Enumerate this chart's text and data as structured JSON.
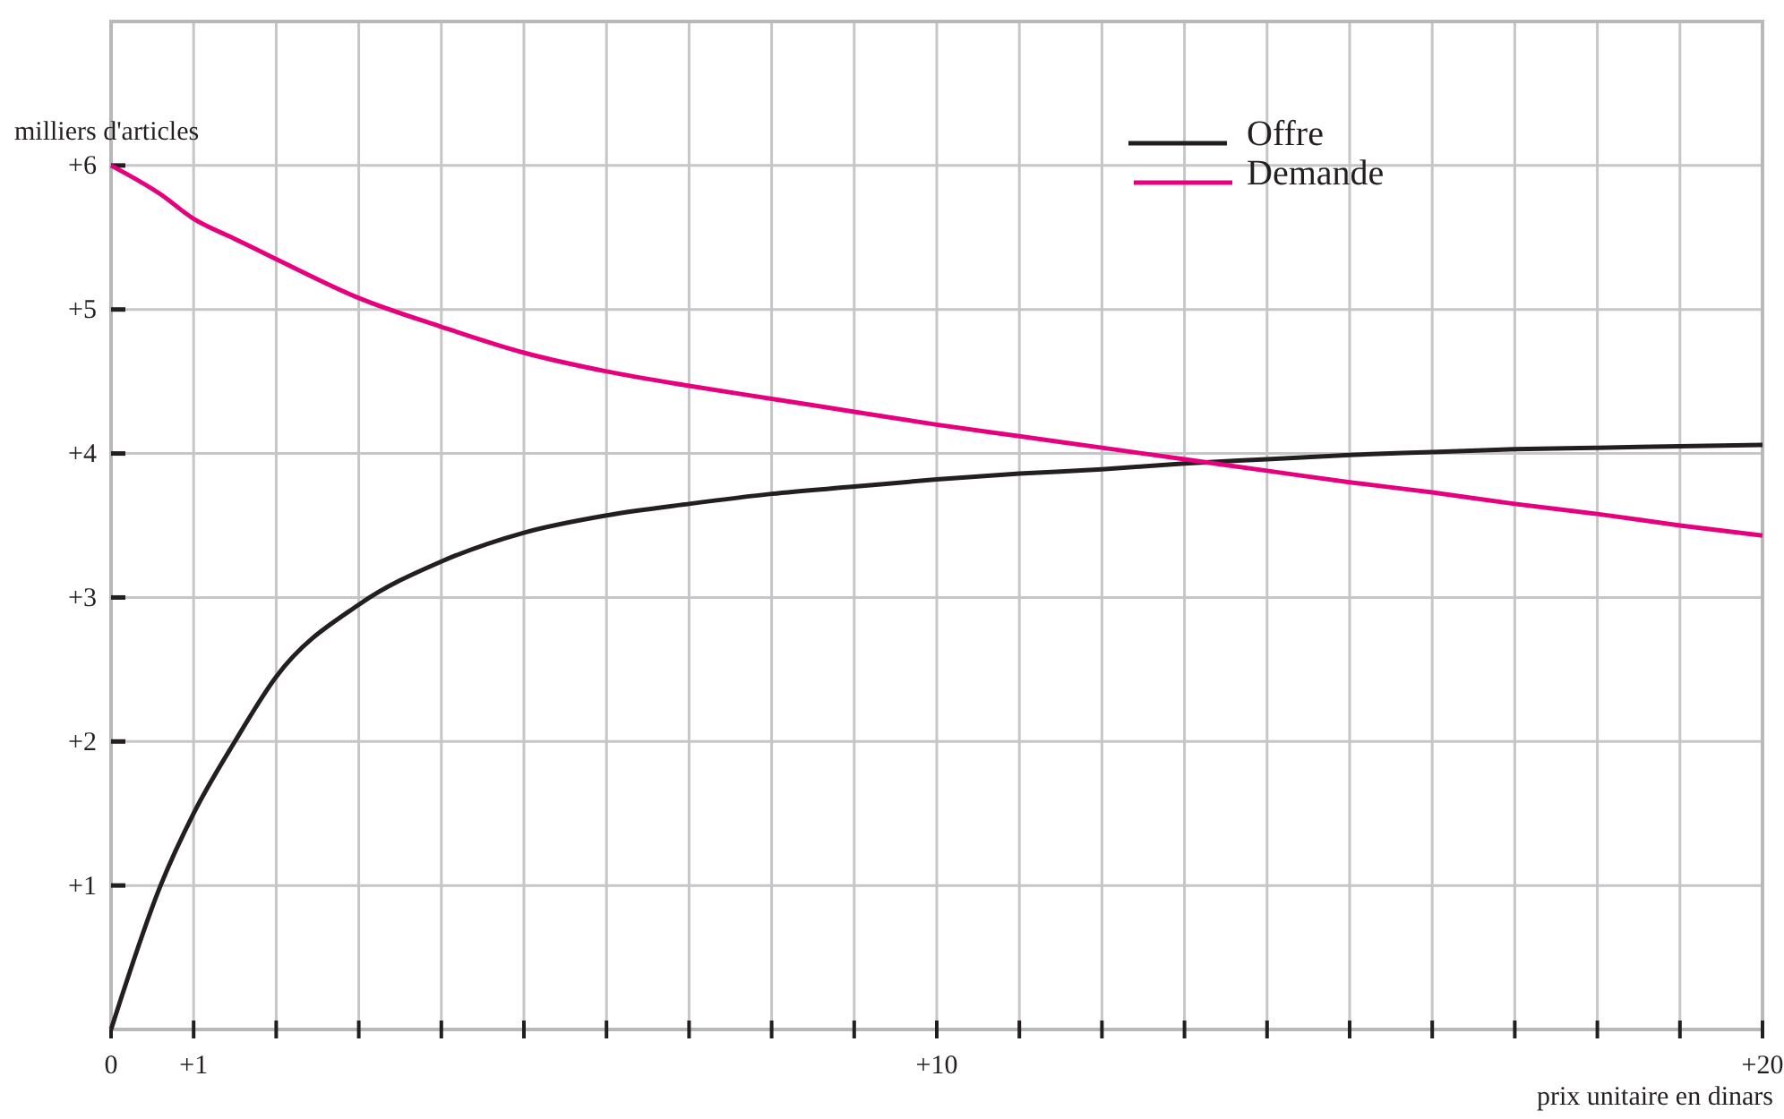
{
  "chart_data": {
    "type": "line",
    "xlabel": "prix unitaire en dinars",
    "ylabel": "milliers d'articles",
    "xlim": [
      0,
      20
    ],
    "ylim": [
      0,
      7
    ],
    "xticks": [
      0,
      {
        "value": 1,
        "label": "+1"
      },
      {
        "value": 2,
        "label": null
      },
      {
        "value": 3,
        "label": null
      },
      {
        "value": 4,
        "label": null
      },
      {
        "value": 5,
        "label": null
      },
      {
        "value": 6,
        "label": null
      },
      {
        "value": 7,
        "label": null
      },
      {
        "value": 8,
        "label": null
      },
      {
        "value": 9,
        "label": null
      },
      {
        "value": 10,
        "label": "+10"
      },
      {
        "value": 11,
        "label": null
      },
      {
        "value": 12,
        "label": null
      },
      {
        "value": 13,
        "label": null
      },
      {
        "value": 14,
        "label": null
      },
      {
        "value": 15,
        "label": null
      },
      {
        "value": 16,
        "label": null
      },
      {
        "value": 17,
        "label": null
      },
      {
        "value": 18,
        "label": null
      },
      {
        "value": 19,
        "label": null
      },
      {
        "value": 20,
        "label": "+20"
      }
    ],
    "yticks": [
      {
        "value": 1,
        "label": "+1"
      },
      {
        "value": 2,
        "label": "+2"
      },
      {
        "value": 3,
        "label": "+3"
      },
      {
        "value": 4,
        "label": "+4"
      },
      {
        "value": 5,
        "label": "+5"
      },
      {
        "value": 6,
        "label": "+6"
      }
    ],
    "x": [
      0,
      0.6,
      1,
      1.5,
      2,
      3,
      4,
      5,
      6,
      7,
      8,
      9,
      10,
      11,
      12,
      13,
      14,
      15,
      16,
      17,
      18,
      19,
      20
    ],
    "series": [
      {
        "name": "Offre",
        "color": "#231f20",
        "values": [
          0,
          1,
          1.5,
          2,
          2.45,
          2.95,
          3.25,
          3.45,
          3.57,
          3.65,
          3.72,
          3.77,
          3.82,
          3.86,
          3.89,
          3.93,
          3.96,
          3.99,
          4.01,
          4.03,
          4.04,
          4.05,
          4.06
        ]
      },
      {
        "name": "Demande",
        "color": "#e6007e",
        "values": [
          6,
          5.8,
          5.63,
          5.49,
          5.35,
          5.08,
          4.88,
          4.7,
          4.57,
          4.47,
          4.38,
          4.29,
          4.2,
          4.12,
          4.04,
          3.96,
          3.88,
          3.8,
          3.73,
          3.65,
          3.58,
          3.5,
          3.43
        ]
      }
    ],
    "grid": true,
    "legend": "top right",
    "marker": "none",
    "line_style": "solid"
  }
}
